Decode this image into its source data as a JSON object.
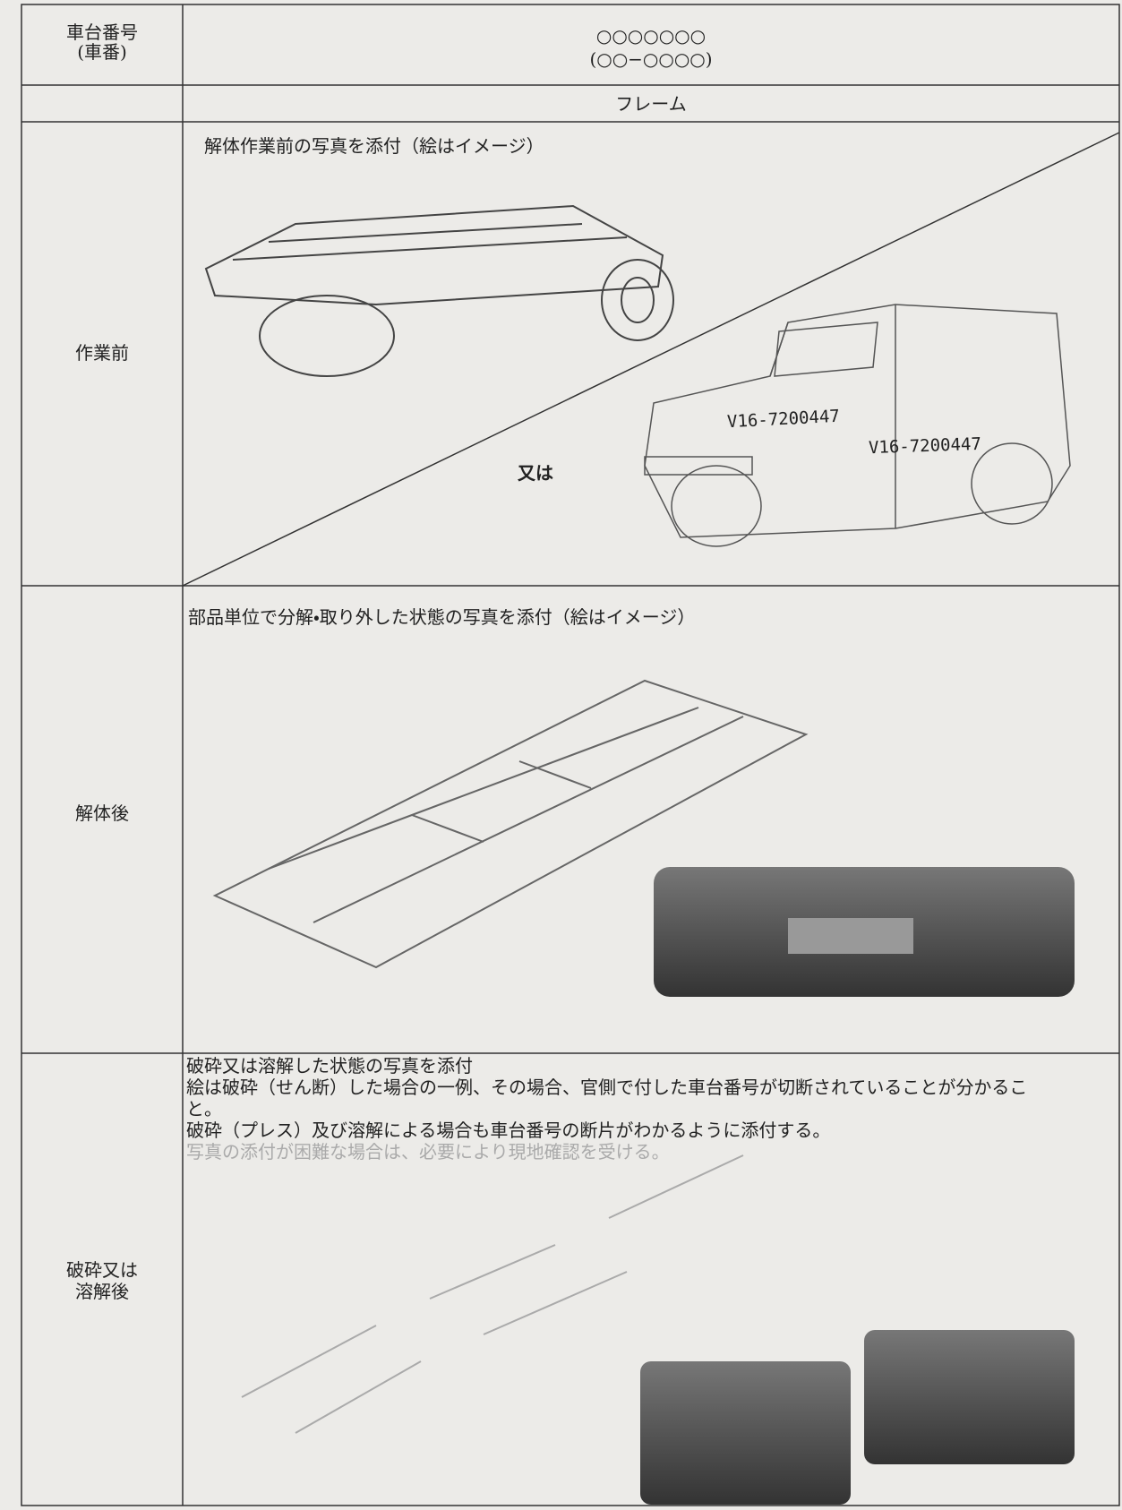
{
  "header": {
    "label_lines": [
      "車台番号",
      "(車番)"
    ],
    "value_lines": [
      "○○○○○○○",
      "(○○−○○○○)"
    ]
  },
  "part": "フレーム",
  "rows": [
    {
      "label": "作業前",
      "caption": "解体作業前の写真を添付（絵はイメージ）",
      "alternative": "又は",
      "vin_labels": [
        "V16-7200447",
        "V16-7200447"
      ]
    },
    {
      "label": "解体後",
      "caption": "部品単位で分解・取り外した状態の写真を添付（絵はイメージ）"
    },
    {
      "label_lines": [
        "破砕又は",
        "溶解後"
      ],
      "caption_lines": [
        "破砕又は溶解した状態の写真を添付",
        "絵は破砕（せん断）した場合の一例、その場合、官側で付した車台番号が切断されていることが分かること。",
        "破砕（プレス）及び溶解による場合も車台番号の断片がわかるように添付する。",
        "写真の添付が困難な場合は、必要により現地確認を受ける。"
      ]
    }
  ]
}
